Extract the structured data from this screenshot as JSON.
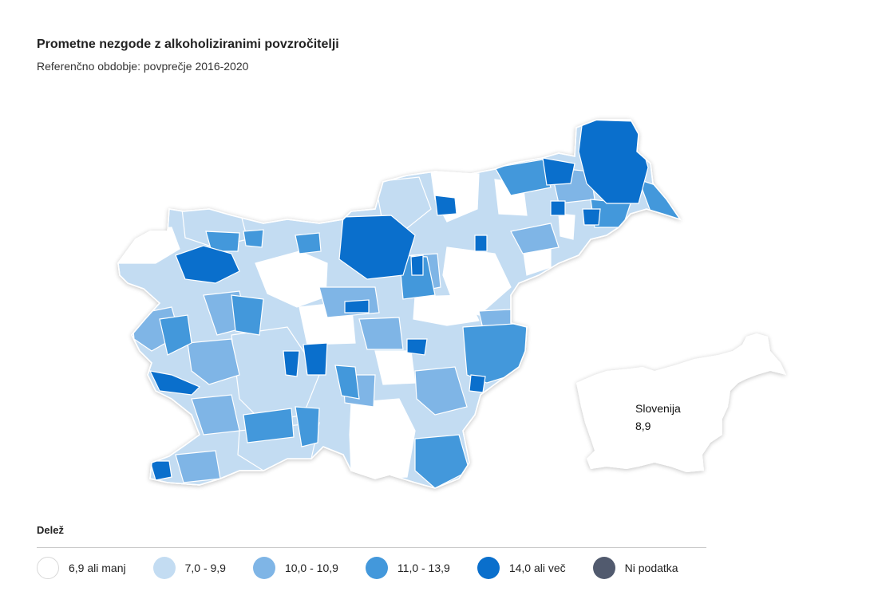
{
  "header": {
    "title": "Prometne nezgode z alkoholiziranimi povzročitelji",
    "subtitle": "Referenčno obdobje: povprečje 2016-2020"
  },
  "national": {
    "name": "Slovenija",
    "value": "8,9"
  },
  "legend": {
    "title": "Delež",
    "items": [
      {
        "label": "6,9 ali manj",
        "color": "#ffffff"
      },
      {
        "label": "7,0 - 9,9",
        "color": "#c3dcf2"
      },
      {
        "label": "10,0 - 10,9",
        "color": "#7fb5e6"
      },
      {
        "label": "11,0 - 13,9",
        "color": "#4398db"
      },
      {
        "label": "14,0 ali več",
        "color": "#0a6fcc"
      },
      {
        "label": "Ni podatka",
        "color": "#515a6e"
      }
    ]
  }
}
